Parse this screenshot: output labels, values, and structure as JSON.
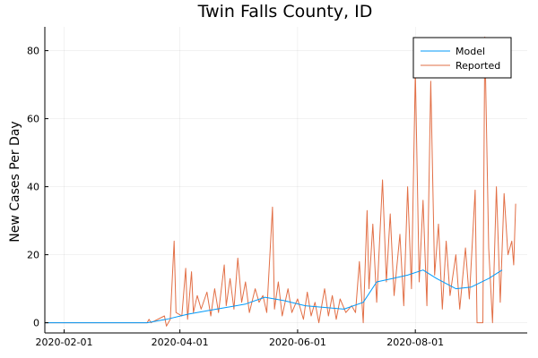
{
  "chart_data": {
    "type": "line",
    "title": "Twin Falls County, ID",
    "xlabel": "",
    "ylabel": "New Cases Per Day",
    "x_axis": {
      "type": "date",
      "range": [
        "2020-01-22",
        "2020-09-28"
      ],
      "ticks": [
        "2020-02-01",
        "2020-04-01",
        "2020-06-01",
        "2020-08-01"
      ]
    },
    "y_axis": {
      "range": [
        -3,
        87
      ],
      "ticks": [
        0,
        20,
        40,
        60,
        80
      ]
    },
    "grid": true,
    "legend_position": "top-right",
    "colors": {
      "Model": "#009AFA",
      "Reported": "#E26F46"
    },
    "series": [
      {
        "name": "Model",
        "points": [
          [
            "2020-01-22",
            0
          ],
          [
            "2020-03-15",
            0
          ],
          [
            "2020-03-25",
            1
          ],
          [
            "2020-04-05",
            2.5
          ],
          [
            "2020-04-15",
            3.5
          ],
          [
            "2020-04-25",
            4.5
          ],
          [
            "2020-05-05",
            5.5
          ],
          [
            "2020-05-15",
            7.5
          ],
          [
            "2020-05-25",
            6.5
          ],
          [
            "2020-06-05",
            5
          ],
          [
            "2020-06-15",
            4.5
          ],
          [
            "2020-06-25",
            4
          ],
          [
            "2020-07-05",
            6
          ],
          [
            "2020-07-12",
            12
          ],
          [
            "2020-07-20",
            13
          ],
          [
            "2020-07-28",
            14
          ],
          [
            "2020-08-05",
            15.5
          ],
          [
            "2020-08-12",
            13
          ],
          [
            "2020-08-22",
            10
          ],
          [
            "2020-08-30",
            10.5
          ],
          [
            "2020-09-08",
            13
          ],
          [
            "2020-09-15",
            15.5
          ]
        ]
      },
      {
        "name": "Reported",
        "points": [
          [
            "2020-01-22",
            0
          ],
          [
            "2020-03-15",
            0
          ],
          [
            "2020-03-16",
            1
          ],
          [
            "2020-03-17",
            0
          ],
          [
            "2020-03-24",
            2
          ],
          [
            "2020-03-25",
            -1
          ],
          [
            "2020-03-27",
            1
          ],
          [
            "2020-03-29",
            24
          ],
          [
            "2020-03-30",
            3
          ],
          [
            "2020-04-02",
            2
          ],
          [
            "2020-04-04",
            16
          ],
          [
            "2020-04-05",
            1
          ],
          [
            "2020-04-07",
            15
          ],
          [
            "2020-04-08",
            3
          ],
          [
            "2020-04-10",
            8
          ],
          [
            "2020-04-12",
            4
          ],
          [
            "2020-04-15",
            9
          ],
          [
            "2020-04-17",
            2
          ],
          [
            "2020-04-19",
            10
          ],
          [
            "2020-04-21",
            3
          ],
          [
            "2020-04-24",
            17
          ],
          [
            "2020-04-25",
            5
          ],
          [
            "2020-04-27",
            13
          ],
          [
            "2020-04-29",
            4
          ],
          [
            "2020-05-01",
            19
          ],
          [
            "2020-05-03",
            6
          ],
          [
            "2020-05-05",
            12
          ],
          [
            "2020-05-07",
            3
          ],
          [
            "2020-05-10",
            10
          ],
          [
            "2020-05-12",
            6
          ],
          [
            "2020-05-14",
            8
          ],
          [
            "2020-05-16",
            3
          ],
          [
            "2020-05-19",
            34
          ],
          [
            "2020-05-20",
            4
          ],
          [
            "2020-05-22",
            12
          ],
          [
            "2020-05-24",
            2
          ],
          [
            "2020-05-27",
            10
          ],
          [
            "2020-05-29",
            3
          ],
          [
            "2020-06-01",
            7
          ],
          [
            "2020-06-04",
            1
          ],
          [
            "2020-06-06",
            9
          ],
          [
            "2020-06-08",
            2
          ],
          [
            "2020-06-10",
            6
          ],
          [
            "2020-06-12",
            0
          ],
          [
            "2020-06-15",
            10
          ],
          [
            "2020-06-17",
            2
          ],
          [
            "2020-06-19",
            8
          ],
          [
            "2020-06-21",
            1
          ],
          [
            "2020-06-23",
            7
          ],
          [
            "2020-06-26",
            3
          ],
          [
            "2020-06-29",
            5
          ],
          [
            "2020-07-01",
            3
          ],
          [
            "2020-07-03",
            18
          ],
          [
            "2020-07-05",
            0
          ],
          [
            "2020-07-07",
            33
          ],
          [
            "2020-07-08",
            10
          ],
          [
            "2020-07-10",
            29
          ],
          [
            "2020-07-12",
            6
          ],
          [
            "2020-07-15",
            42
          ],
          [
            "2020-07-17",
            12
          ],
          [
            "2020-07-19",
            32
          ],
          [
            "2020-07-21",
            8
          ],
          [
            "2020-07-24",
            26
          ],
          [
            "2020-07-26",
            5
          ],
          [
            "2020-07-28",
            40
          ],
          [
            "2020-07-30",
            10
          ],
          [
            "2020-08-01",
            74
          ],
          [
            "2020-08-03",
            12
          ],
          [
            "2020-08-05",
            36
          ],
          [
            "2020-08-07",
            5
          ],
          [
            "2020-08-09",
            71
          ],
          [
            "2020-08-11",
            14
          ],
          [
            "2020-08-13",
            29
          ],
          [
            "2020-08-15",
            4
          ],
          [
            "2020-08-17",
            24
          ],
          [
            "2020-08-19",
            8
          ],
          [
            "2020-08-22",
            20
          ],
          [
            "2020-08-24",
            4
          ],
          [
            "2020-08-27",
            22
          ],
          [
            "2020-08-29",
            7
          ],
          [
            "2020-09-01",
            39
          ],
          [
            "2020-09-02",
            0
          ],
          [
            "2020-09-05",
            0
          ],
          [
            "2020-09-06",
            84
          ],
          [
            "2020-09-08",
            22
          ],
          [
            "2020-09-10",
            0
          ],
          [
            "2020-09-12",
            40
          ],
          [
            "2020-09-14",
            6
          ],
          [
            "2020-09-16",
            38
          ],
          [
            "2020-09-18",
            20
          ],
          [
            "2020-09-20",
            24
          ],
          [
            "2020-09-21",
            17
          ],
          [
            "2020-09-22",
            35
          ]
        ]
      }
    ]
  }
}
